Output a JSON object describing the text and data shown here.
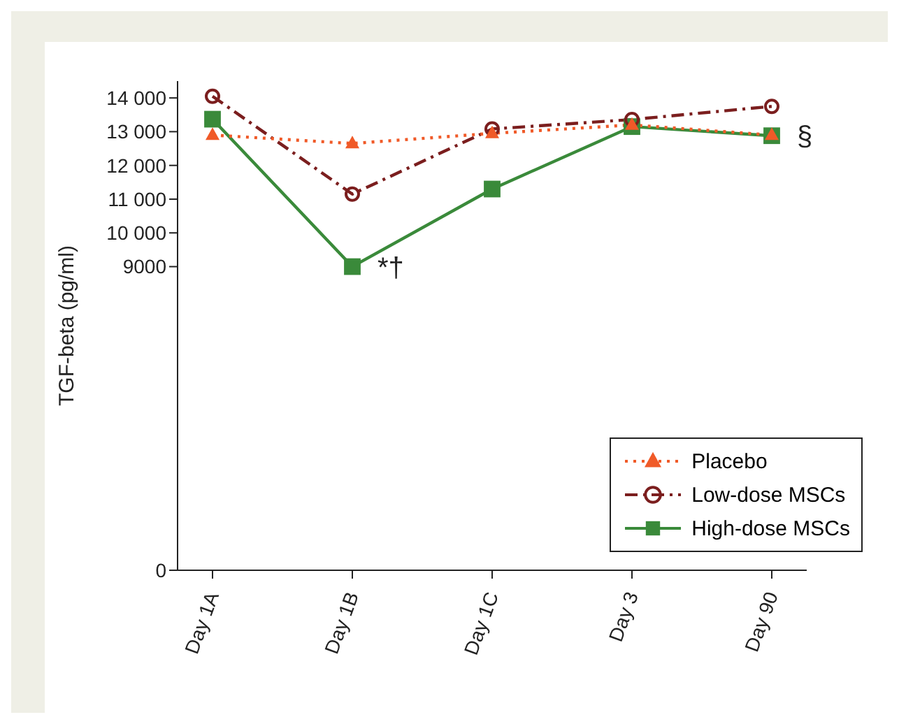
{
  "chart_data": {
    "type": "line",
    "ylabel": "TGF-beta (pg/ml)",
    "categories": [
      "Day 1A",
      "Day 1B",
      "Day 1C",
      "Day 3",
      "Day 90"
    ],
    "ylim": [
      0,
      14500
    ],
    "yticks": [
      0,
      {
        "value": 9000,
        "label": "9000"
      },
      {
        "value": 10000,
        "label": "10 000"
      },
      {
        "value": 11000,
        "label": "11 000"
      },
      {
        "value": 12000,
        "label": "12 000"
      },
      {
        "value": 13000,
        "label": "13 000"
      },
      {
        "value": 14000,
        "label": "14 000"
      }
    ],
    "series": [
      {
        "name": "Placebo",
        "color": "#f05a28",
        "marker": "triangle",
        "line_style": "dotted",
        "values": [
          12900,
          12650,
          12950,
          13200,
          12900
        ]
      },
      {
        "name": "Low-dose MSCs",
        "color": "#7b1e1e",
        "marker": "circle",
        "line_style": "dashed",
        "values": [
          14050,
          11150,
          13080,
          13360,
          13750
        ]
      },
      {
        "name": "High-dose MSCs",
        "color": "#3a8a3a",
        "marker": "square",
        "line_style": "solid",
        "values": [
          13370,
          9000,
          11300,
          13150,
          12880
        ]
      }
    ],
    "annotations": [
      {
        "text": "*†",
        "x": "Day 1B",
        "y": 9000
      },
      {
        "text": "§",
        "x": "Day 90",
        "y": 12880
      }
    ],
    "legend": "bottom right",
    "grid": false
  }
}
